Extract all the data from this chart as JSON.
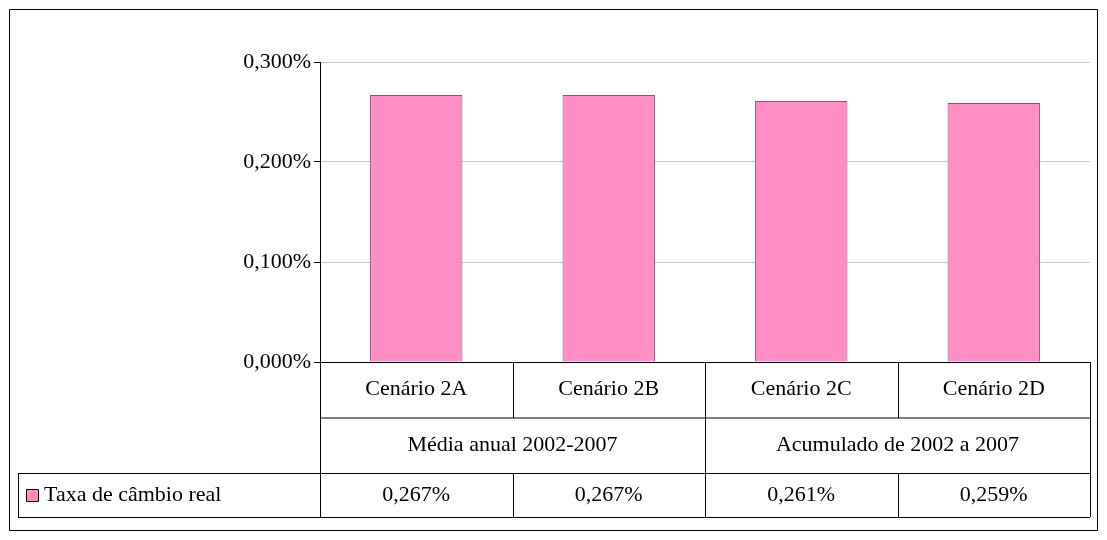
{
  "chart_data": {
    "type": "bar",
    "categories": [
      "Cenário 2A",
      "Cenário 2B",
      "Cenário 2C",
      "Cenário 2D"
    ],
    "series": [
      {
        "name": "Taxa de câmbio real",
        "color": "#ff8ec6",
        "values": [
          0.267,
          0.267,
          0.261,
          0.259
        ],
        "value_labels": [
          "0,267%",
          "0,267%",
          "0,261%",
          "0,259%"
        ]
      }
    ],
    "ylim": [
      0,
      0.3
    ],
    "yticks": [
      {
        "value": 0,
        "label": "0,000%"
      },
      {
        "value": 0.1,
        "label": "0,100%"
      },
      {
        "value": 0.2,
        "label": "0,200%"
      },
      {
        "value": 0.3,
        "label": "0,300%"
      }
    ],
    "grid": "y",
    "legend": "bottom left",
    "annotations": [
      "Média anual 2002-2007",
      "Acumulado de 2002 a 2007"
    ]
  }
}
